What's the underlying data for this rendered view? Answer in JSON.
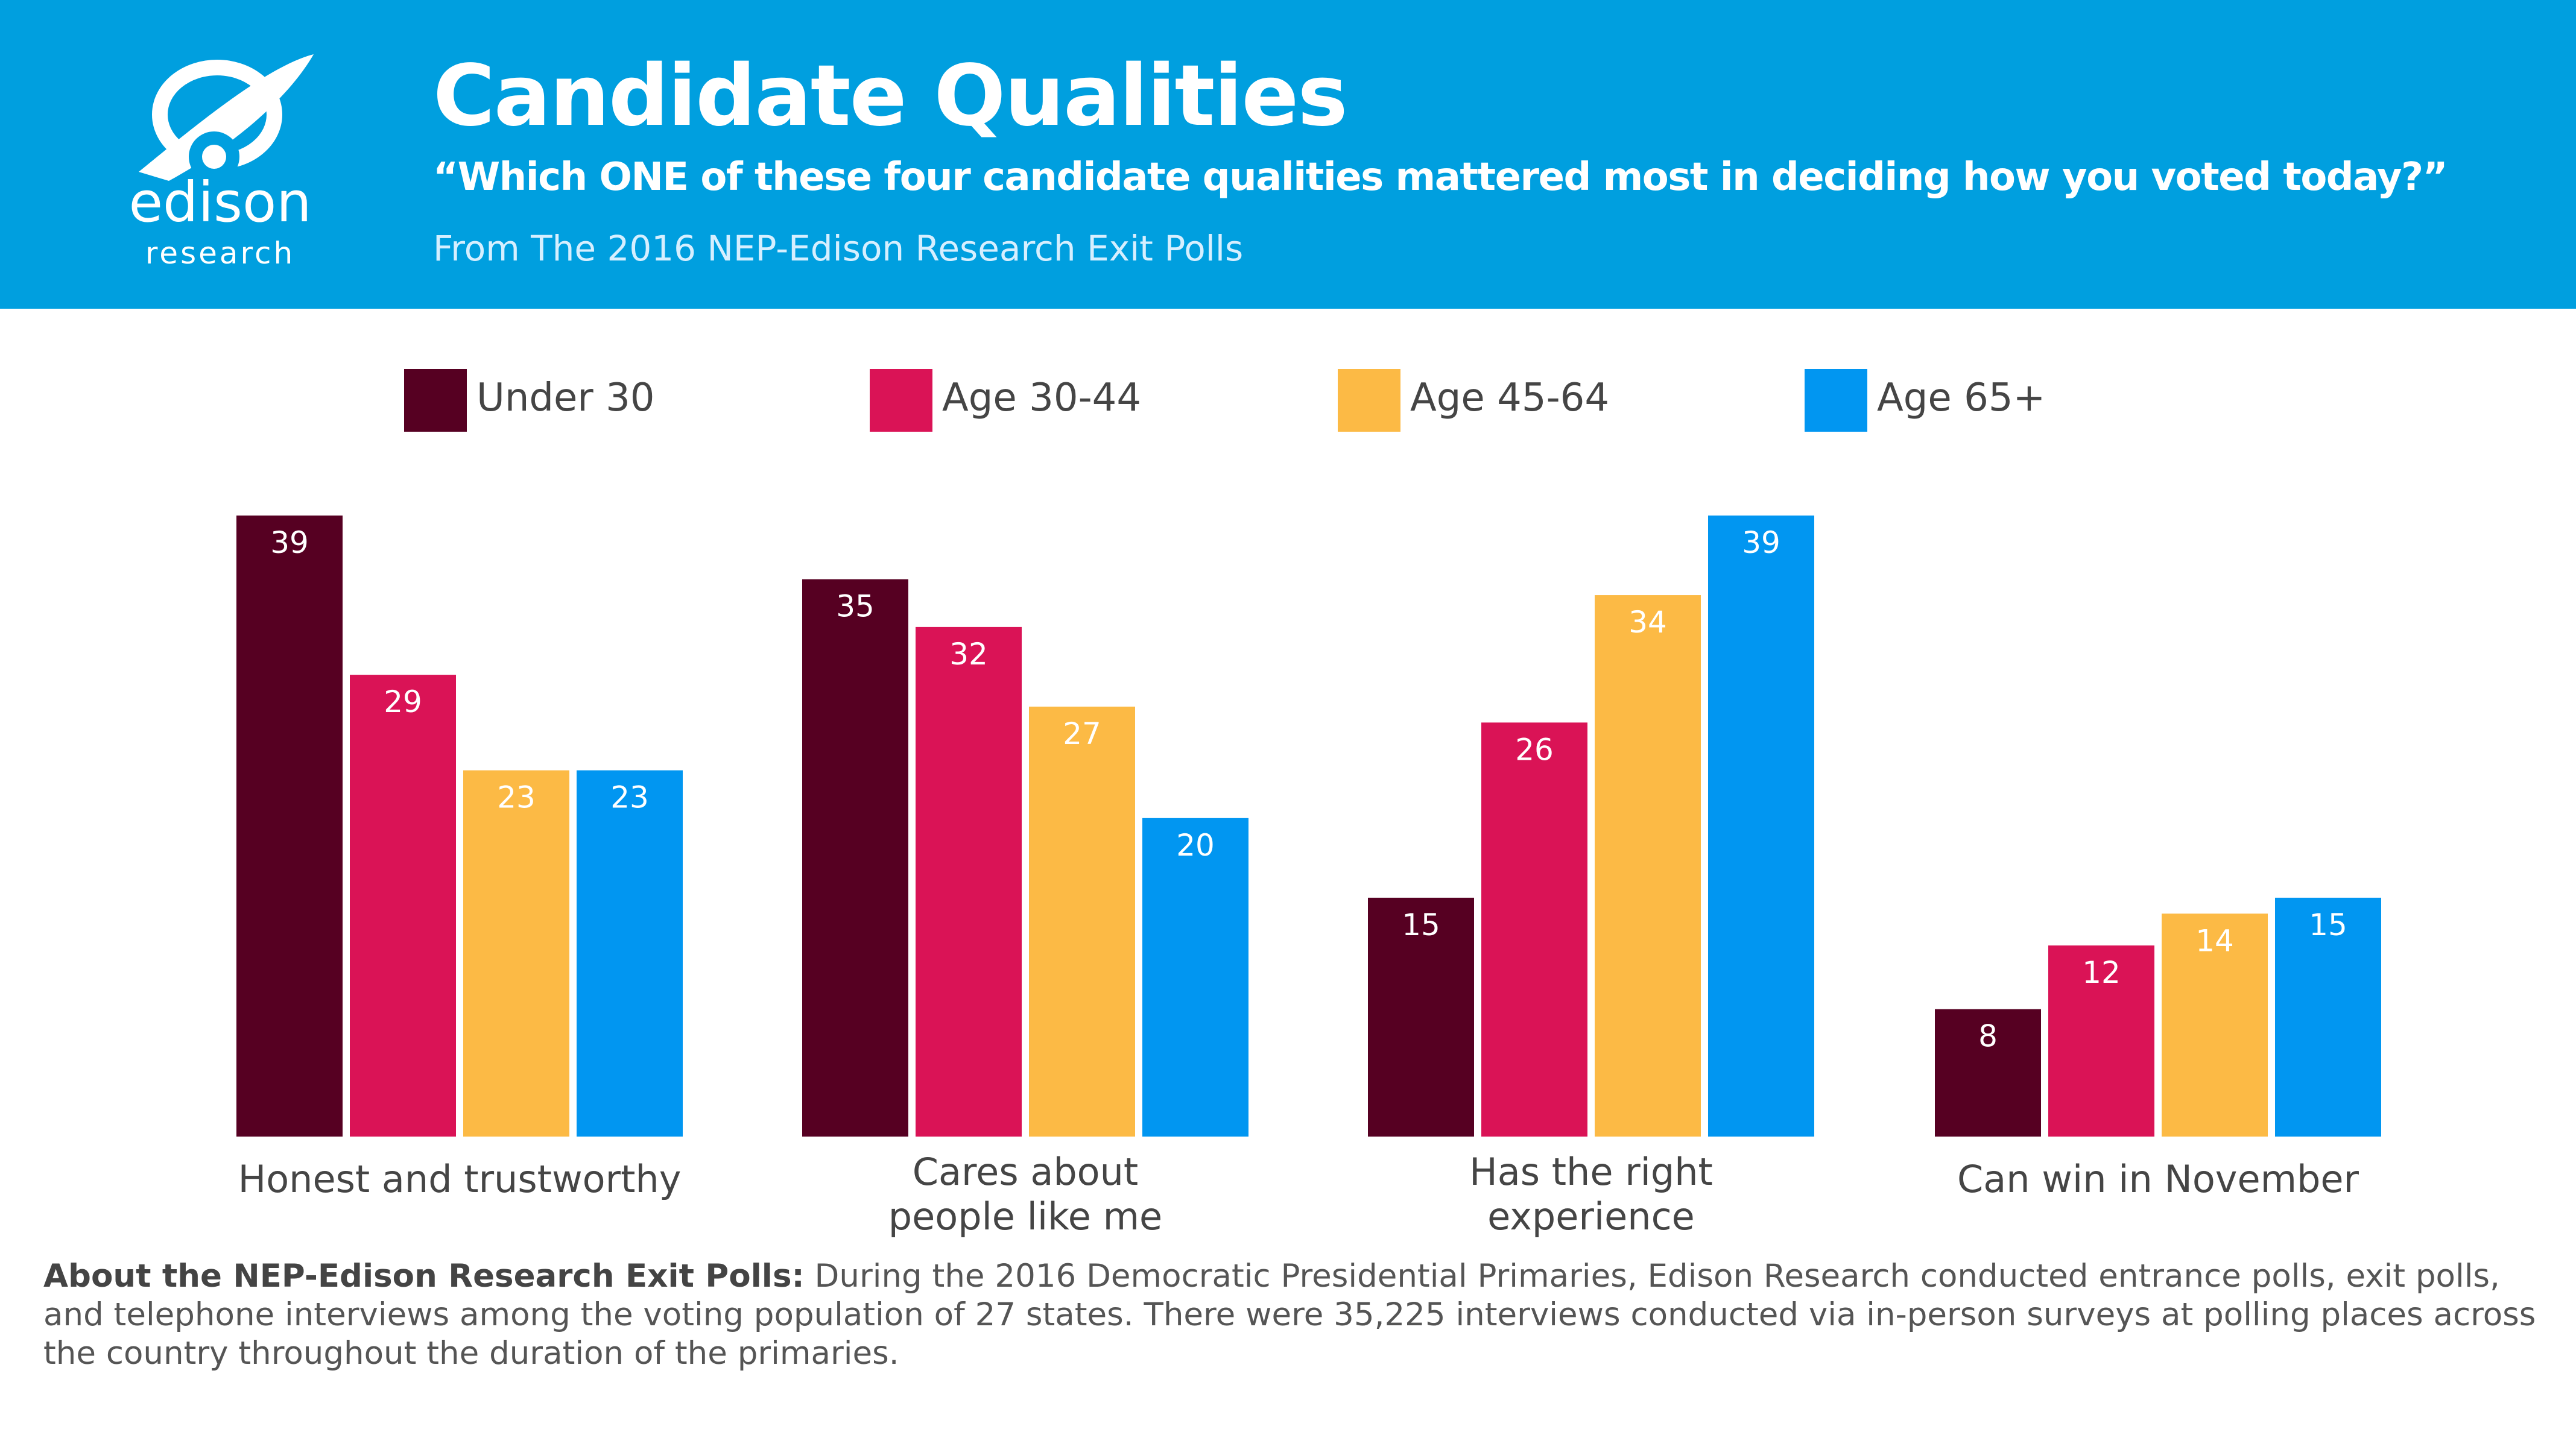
{
  "header": {
    "title": "Candidate Qualities",
    "subtitle": "“Which ONE of these four candidate qualities mattered most in deciding how you voted today?”",
    "source": "From The 2016 NEP-Edison Research Exit Polls",
    "logo": {
      "word": "edison",
      "sub": "research",
      "icon": "planet-ring-icon"
    },
    "background_color": "#009fdf"
  },
  "chart_data": {
    "type": "bar",
    "categories": [
      [
        "Honest and trustworthy"
      ],
      [
        "Cares about",
        "people like me"
      ],
      [
        "Has the right",
        "experience"
      ],
      [
        "Can win in November"
      ]
    ],
    "series": [
      {
        "name": "Under 30",
        "color": "#560022",
        "values": [
          39,
          35,
          15,
          8
        ]
      },
      {
        "name": "Age 30-44",
        "color": "#da1356",
        "values": [
          29,
          32,
          26,
          12
        ]
      },
      {
        "name": "Age 45-64",
        "color": "#fcba45",
        "values": [
          23,
          27,
          34,
          14
        ]
      },
      {
        "name": "Age 65+",
        "color": "#0196f1",
        "values": [
          23,
          20,
          39,
          15
        ]
      }
    ],
    "ylim": [
      0,
      39
    ],
    "data_labels": true,
    "grid": false,
    "legend_placement": "top"
  },
  "footnote": {
    "bold": "About the NEP-Edison Research Exit Polls:",
    "text": " During the 2016 Democratic Presidential Primaries, Edison Research conducted entrance polls, exit polls, and telephone interviews among the voting population of 27 states. There were 35,225 interviews conducted via in-person surveys at polling places across the country throughout the duration of the primaries."
  }
}
